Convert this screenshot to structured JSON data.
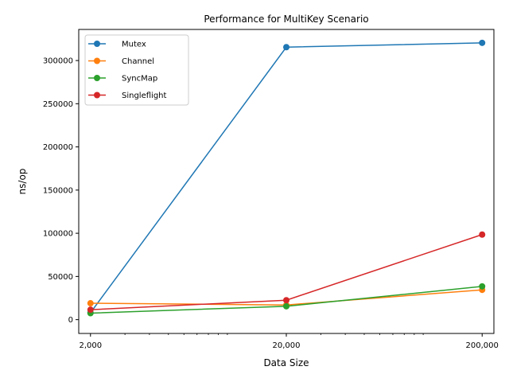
{
  "chart_data": {
    "type": "line",
    "title": "Performance for MultiKey Scenario",
    "xlabel": "Data Size",
    "ylabel": "ns/op",
    "x_scale": "log",
    "x": [
      2000,
      20000,
      200000
    ],
    "x_tick_labels": [
      "2,000",
      "20,000",
      "200,000"
    ],
    "y_ticks": [
      0,
      50000,
      100000,
      150000,
      200000,
      250000,
      300000
    ],
    "y_tick_labels": [
      "0",
      "50000",
      "100000",
      "150000",
      "200000",
      "250000",
      "300000"
    ],
    "ylim": [
      -16000,
      336000
    ],
    "grid": false,
    "legend_position": "upper-left",
    "series": [
      {
        "name": "Mutex",
        "color": "#1f77b4",
        "values": [
          8000,
          315500,
          320500
        ]
      },
      {
        "name": "Channel",
        "color": "#ff7f0e",
        "values": [
          19000,
          17000,
          34500
        ]
      },
      {
        "name": "SyncMap",
        "color": "#2ca02c",
        "values": [
          7500,
          15500,
          38500
        ]
      },
      {
        "name": "Singleflight",
        "color": "#d62728",
        "values": [
          11500,
          22500,
          98500
        ]
      }
    ]
  }
}
